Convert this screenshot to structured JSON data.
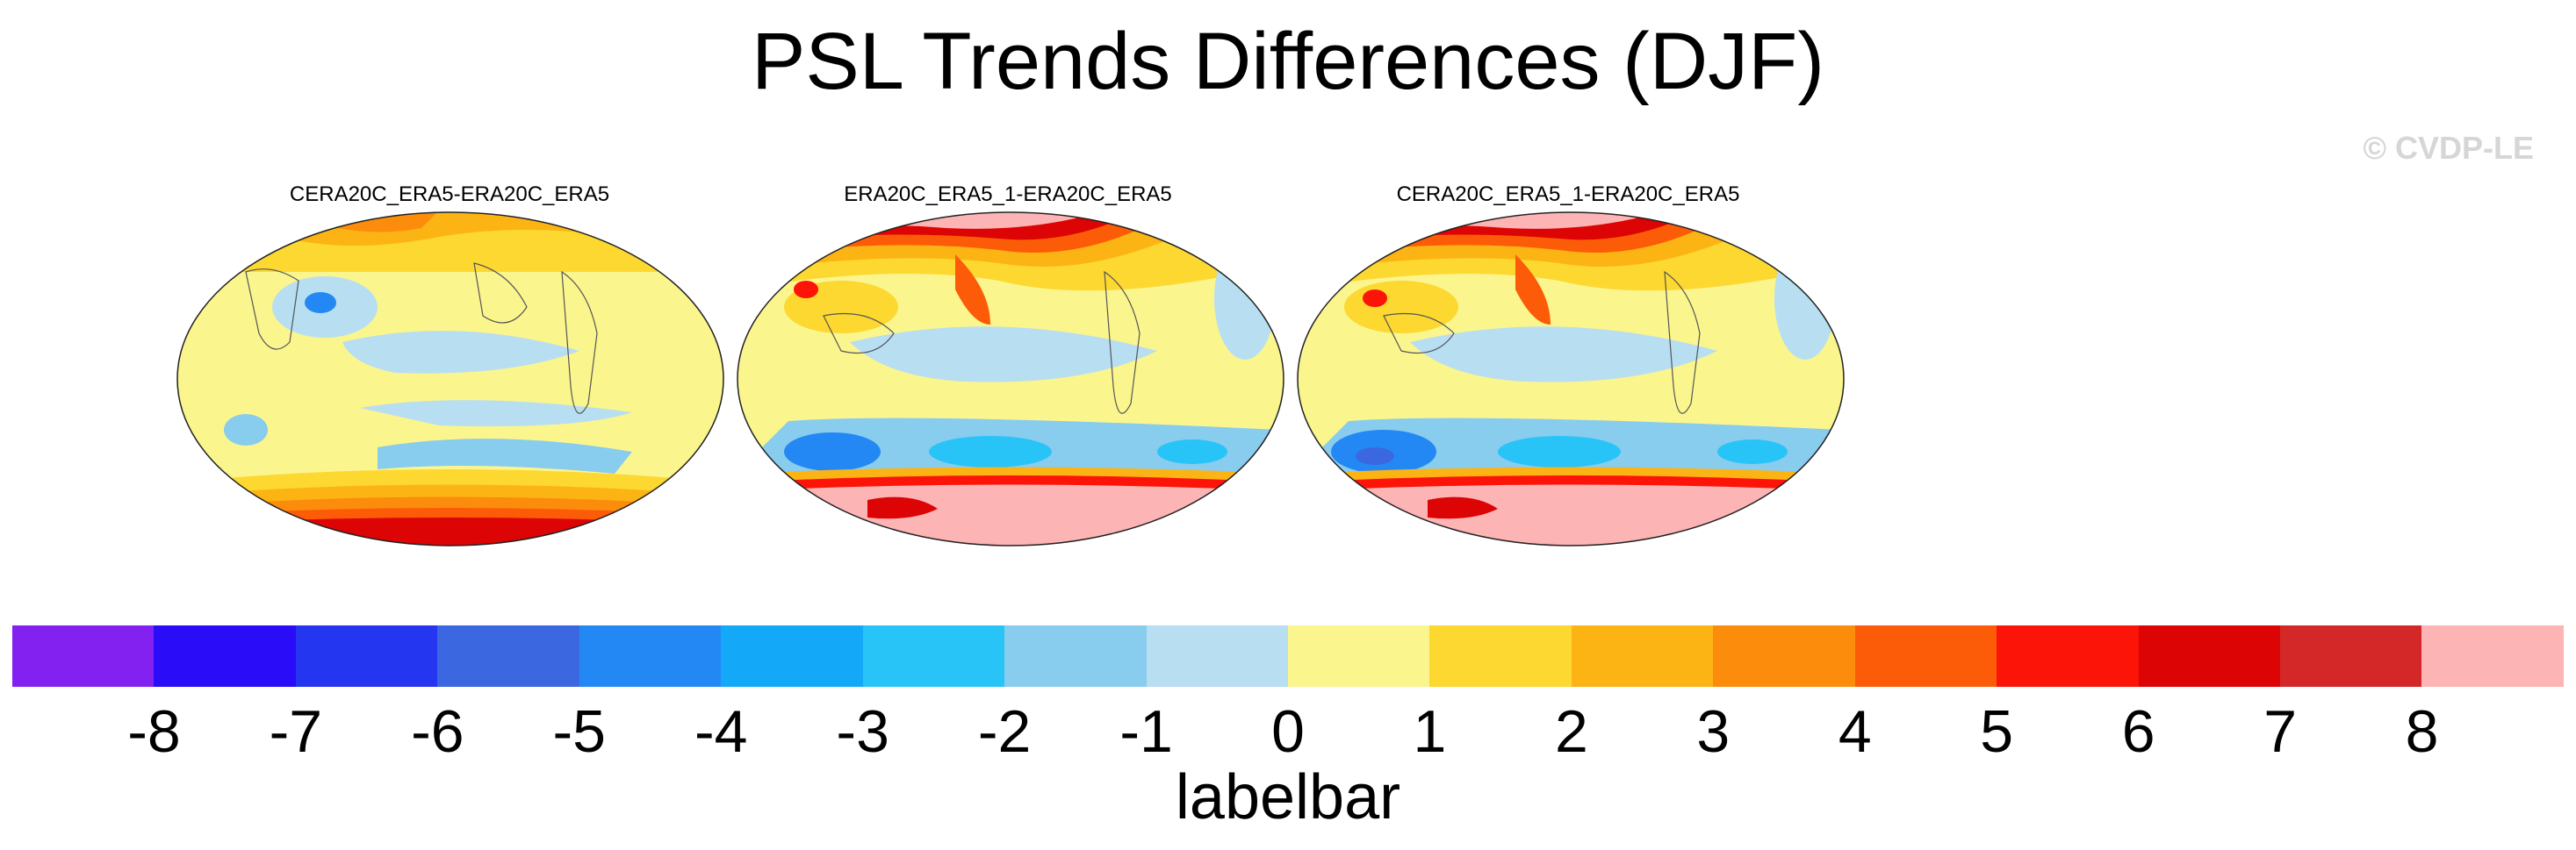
{
  "title": "PSL Trends Differences (DJF)",
  "watermark": "© CVDP-LE",
  "panels": [
    {
      "title": "CERA20C_ERA5-ERA20C_ERA5"
    },
    {
      "title": "ERA20C_ERA5_1-ERA20C_ERA5"
    },
    {
      "title": "CERA20C_ERA5_1-ERA20C_ERA5"
    }
  ],
  "colorbar": {
    "label": "labelbar",
    "ticks": [
      "-8",
      "-7",
      "-6",
      "-5",
      "-4",
      "-3",
      "-2",
      "-1",
      "0",
      "1",
      "2",
      "3",
      "4",
      "5",
      "6",
      "7",
      "8"
    ],
    "colors": [
      "#8322f0",
      "#2a0cf8",
      "#2436f0",
      "#3b68e0",
      "#2488f4",
      "#14a8f8",
      "#28c4f8",
      "#88ccee",
      "#b8def2",
      "#fbf58e",
      "#fcd830",
      "#fcb414",
      "#fc8c0c",
      "#fc5c08",
      "#fc1408",
      "#dc0404",
      "#d42828",
      "#fcb4b4"
    ]
  }
}
